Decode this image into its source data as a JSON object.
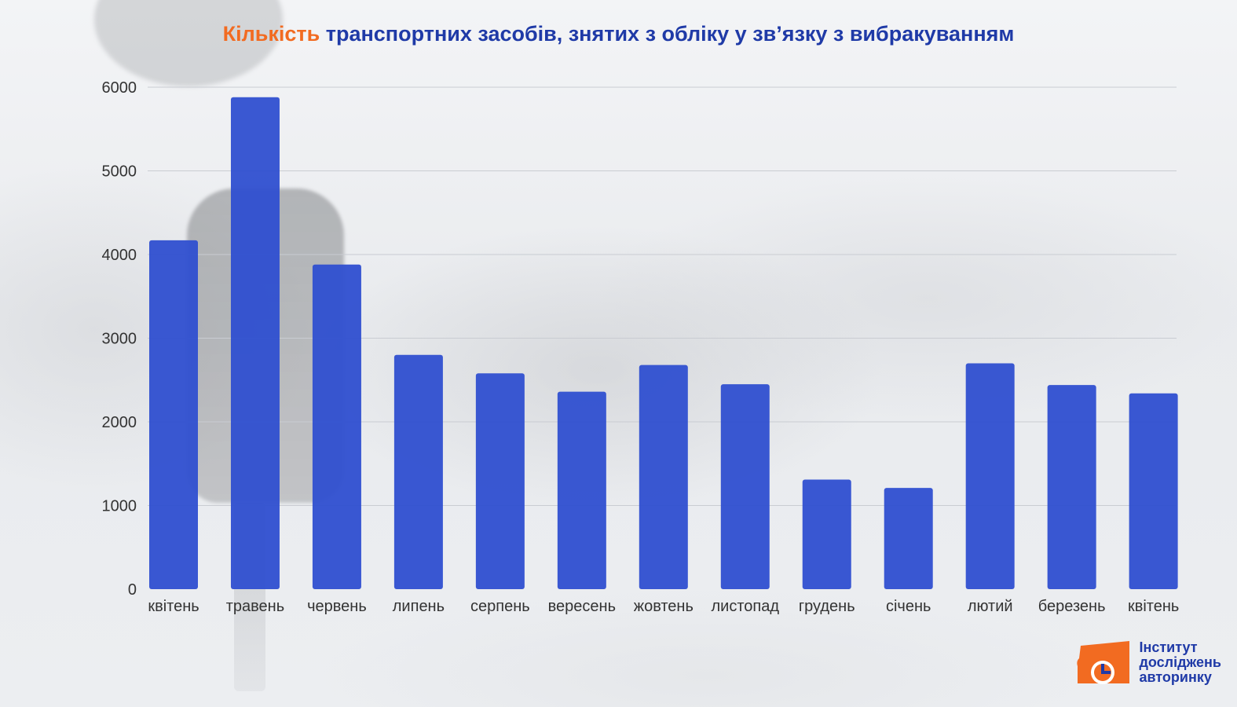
{
  "title": {
    "accent": "Кількість",
    "rest": "транспортних засобів, знятих з обліку у зв’язку з вибракуванням"
  },
  "logo": {
    "line1": "Інститут",
    "line2": "досліджень",
    "line3": "авторинку"
  },
  "colors": {
    "bar": "#2f4fd0",
    "title": "#1f3aa7",
    "accent": "#f26b21",
    "grid": "#c9ccd2",
    "axis_text": "#333333"
  },
  "chart_data": {
    "type": "bar",
    "title": "Кількість транспортних засобів, знятих з обліку у зв’язку з вибракуванням",
    "xlabel": "",
    "ylabel": "",
    "categories": [
      "квітень",
      "травень",
      "червень",
      "липень",
      "серпень",
      "вересень",
      "жовтень",
      "листопад",
      "грудень",
      "січень",
      "лютий",
      "березень",
      "квітень"
    ],
    "values": [
      4170,
      5880,
      3880,
      2800,
      2580,
      2360,
      2680,
      2450,
      1310,
      1210,
      2700,
      2440,
      2340
    ],
    "ylim": [
      0,
      6000
    ],
    "yticks": [
      0,
      1000,
      2000,
      3000,
      4000,
      5000,
      6000
    ],
    "grid": true,
    "legend": "none"
  }
}
